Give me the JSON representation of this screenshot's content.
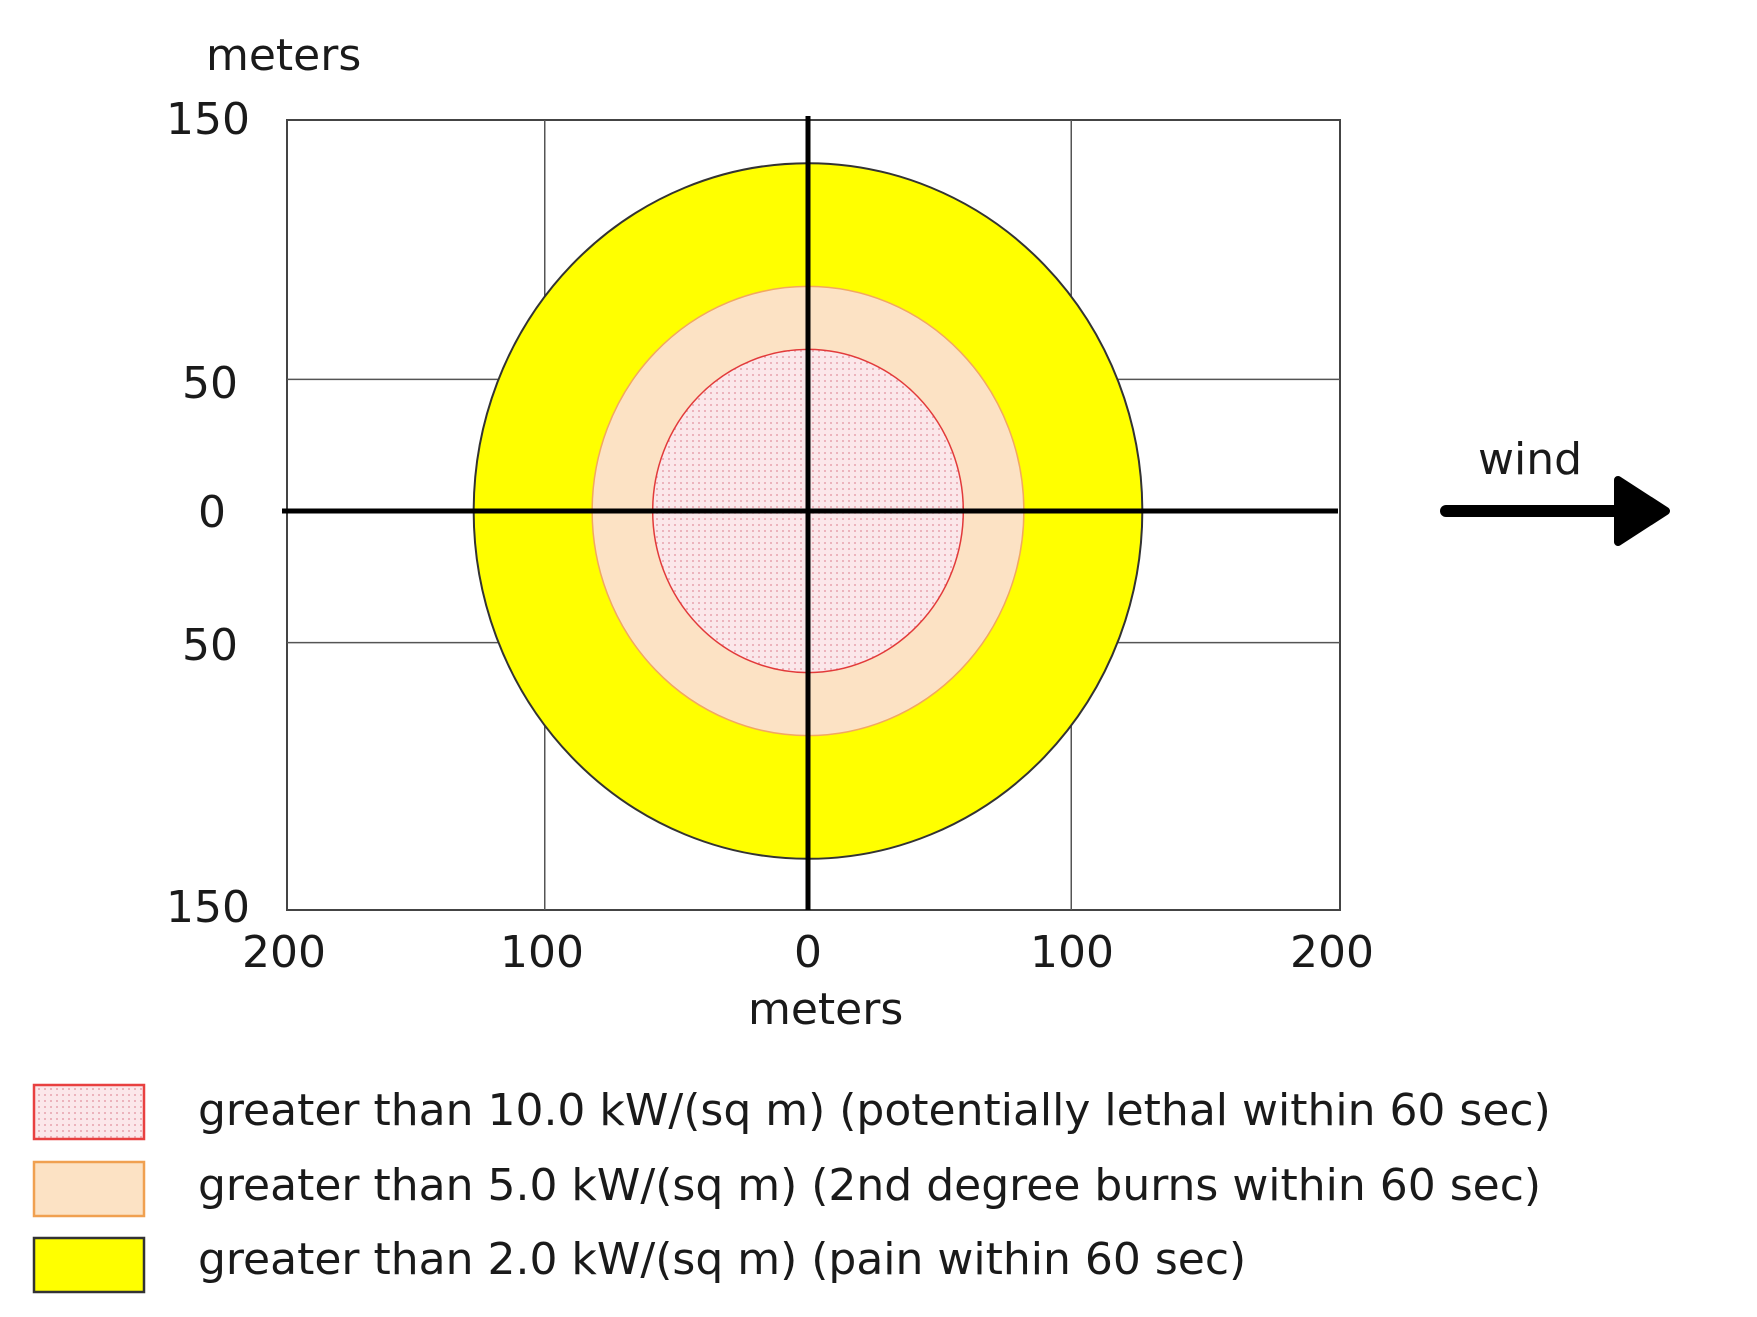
{
  "chart_data": {
    "type": "diagram",
    "y_axis_label": "meters",
    "x_axis_label": "meters",
    "y_ticks": [
      "150",
      "50",
      "0",
      "50",
      "150"
    ],
    "x_ticks": [
      "200",
      "100",
      "0",
      "100",
      "200"
    ],
    "xlim": [
      -200,
      200
    ],
    "ylim": [
      -150,
      150
    ],
    "grid": true,
    "wind_label": "wind",
    "zones": [
      {
        "name": "greater than 2.0 kW/(sq m) (pain within 60 sec)",
        "radius": 127,
        "color": "#ffff00",
        "stroke": "#333333"
      },
      {
        "name": "greater than 5.0 kW/(sq m) (2nd degree burns within 60 sec)",
        "radius": 82,
        "color": "#fce2c4",
        "stroke": "#f2a860"
      },
      {
        "name": "greater than 10.0 kW/(sq m) (potentially lethal within 60 sec)",
        "radius": 59,
        "color": "#fbe7ea",
        "stroke": "#e23a3a"
      }
    ],
    "legend": [
      {
        "label": "greater than 10.0 kW/(sq m) (potentially lethal within 60 sec)",
        "color": "#fbe3e6",
        "stroke": "#e84040"
      },
      {
        "label": "greater than 5.0 kW/(sq m) (2nd degree burns within 60 sec)",
        "color": "#fce2c4",
        "stroke": "#f0a050"
      },
      {
        "label": "greater than 2.0 kW/(sq m) (pain within 60 sec)",
        "color": "#ffff00",
        "stroke": "#333333"
      }
    ]
  }
}
